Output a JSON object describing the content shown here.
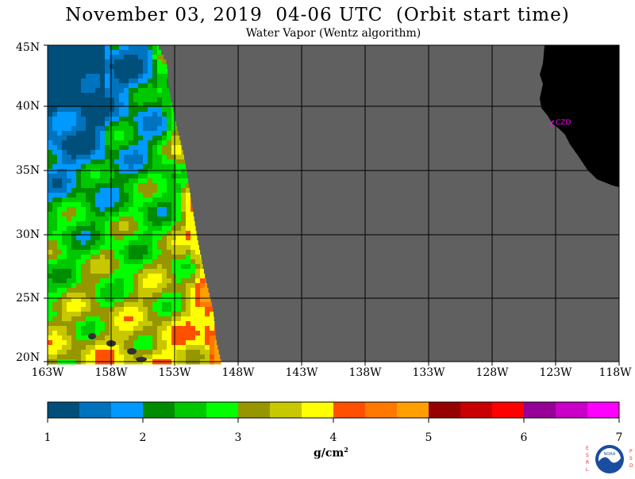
{
  "header": {
    "title": "November 03, 2019  04-06 UTC  (Orbit start time)",
    "subtitle": "Water Vapor (Wentz algorithm)"
  },
  "map": {
    "lat_labels": [
      "45N",
      "40N",
      "35N",
      "30N",
      "25N",
      "20N"
    ],
    "lon_labels": [
      "163W",
      "158W",
      "153W",
      "148W",
      "143W",
      "138W",
      "133W",
      "128W",
      "123W",
      "118W"
    ],
    "station_label": "CZD",
    "colors": {
      "land": "#000000",
      "no_data": "#606060",
      "grid": "#000000",
      "station": "#ff00ff"
    }
  },
  "colorbar": {
    "ticks": [
      "1",
      "2",
      "3",
      "4",
      "5",
      "6",
      "7"
    ],
    "units_text": "g/cm",
    "units_sup": "2",
    "colors": [
      "#004f7a",
      "#0073be",
      "#0099ff",
      "#008c00",
      "#00c800",
      "#00ff00",
      "#969600",
      "#c8c800",
      "#ffff00",
      "#ff5000",
      "#ff7800",
      "#ffa000",
      "#960000",
      "#c80000",
      "#ff0000",
      "#960096",
      "#c800c8",
      "#ff00ff"
    ]
  },
  "logo": {
    "left_letters": [
      "E",
      "S",
      "R",
      "L"
    ],
    "right_letters": [
      "P",
      "S",
      "D"
    ],
    "center_text": "NOAA"
  }
}
